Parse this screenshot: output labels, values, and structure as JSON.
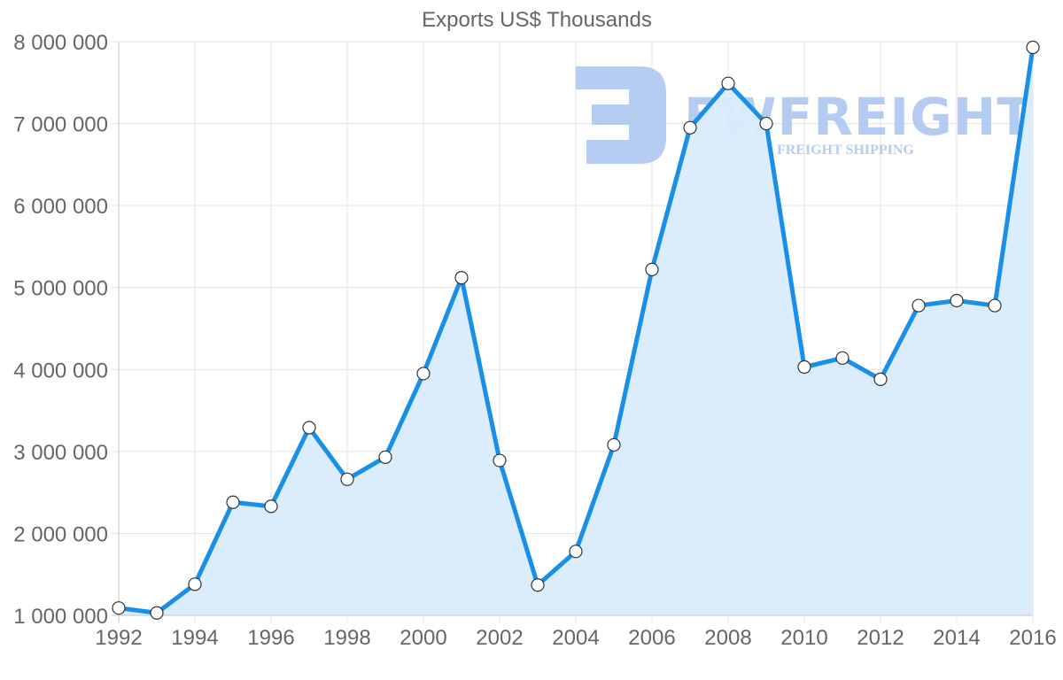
{
  "chart_data": {
    "type": "area",
    "title": "Exports US$ Thousands",
    "xlabel": "",
    "ylabel": "",
    "x": [
      1992,
      1993,
      1994,
      1995,
      1996,
      1997,
      1998,
      1999,
      2000,
      2001,
      2002,
      2003,
      2004,
      2005,
      2006,
      2007,
      2008,
      2009,
      2010,
      2011,
      2012,
      2013,
      2014,
      2015,
      2016
    ],
    "series": [
      {
        "name": "Exports US$ Thousands",
        "values": [
          1090000,
          1030000,
          1380000,
          2380000,
          2330000,
          3290000,
          2660000,
          2930000,
          3950000,
          5120000,
          2890000,
          1370000,
          1780000,
          3080000,
          5220000,
          6950000,
          7490000,
          7000000,
          4030000,
          4140000,
          3880000,
          4780000,
          4840000,
          4780000,
          7930000
        ],
        "line_color": "#1a8fe8",
        "fill_color": "#d9ecfc",
        "marker_fill": "#ffffff",
        "marker_stroke": "#333333"
      }
    ],
    "x_tick_labels": [
      "1992",
      "1994",
      "1996",
      "1998",
      "2000",
      "2002",
      "2004",
      "2006",
      "2008",
      "2010",
      "2012",
      "2014",
      "2016"
    ],
    "y_tick_labels": [
      "1 000 000",
      "2 000 000",
      "3 000 000",
      "4 000 000",
      "5 000 000",
      "6 000 000",
      "7 000 000",
      "8 000 000"
    ],
    "y_ticks": [
      1000000,
      2000000,
      3000000,
      4000000,
      5000000,
      6000000,
      7000000,
      8000000
    ],
    "ylim": [
      1000000,
      8000000
    ],
    "xlim": [
      1992,
      2016
    ],
    "grid": true,
    "legend": "none"
  },
  "watermark": {
    "brand": "FWFREIGHT",
    "tagline": "FREIGHT SHIPPING",
    "color": "#a9c4f0"
  }
}
